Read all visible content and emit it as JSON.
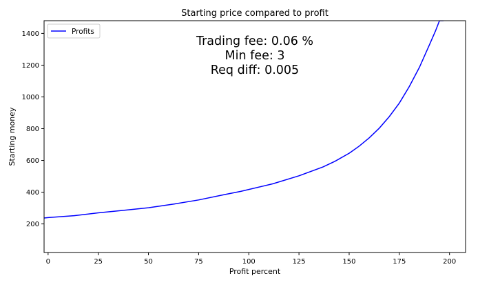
{
  "chart_data": {
    "type": "line",
    "title": "Starting price compared to profit",
    "xlabel": "Profit percent",
    "ylabel": "Starting money",
    "xlim": [
      -2,
      208
    ],
    "ylim": [
      20,
      1480
    ],
    "xticks": [
      0,
      25,
      50,
      75,
      100,
      125,
      150,
      175,
      200
    ],
    "yticks": [
      200,
      400,
      600,
      800,
      1000,
      1200,
      1400
    ],
    "grid": false,
    "legend_position": "top-left",
    "annotation_lines": [
      "Trading fee: 0.06 %",
      "Min fee: 3",
      "Req diff: 0.005"
    ],
    "series": [
      {
        "name": "Profits",
        "color": "#0000ff",
        "x": [
          -2,
          0,
          13,
          25,
          38,
          50,
          63,
          75,
          88,
          96,
          112,
          125,
          137,
          143,
          150,
          155,
          160,
          165,
          170,
          175,
          180,
          185,
          190,
          193,
          195,
          197
        ],
        "y": [
          237,
          240,
          252,
          270,
          286,
          302,
          326,
          351,
          385,
          405,
          453,
          503,
          559,
          595,
          645,
          690,
          742,
          803,
          876,
          961,
          1066,
          1186,
          1328,
          1415,
          1480,
          1480
        ]
      }
    ]
  }
}
